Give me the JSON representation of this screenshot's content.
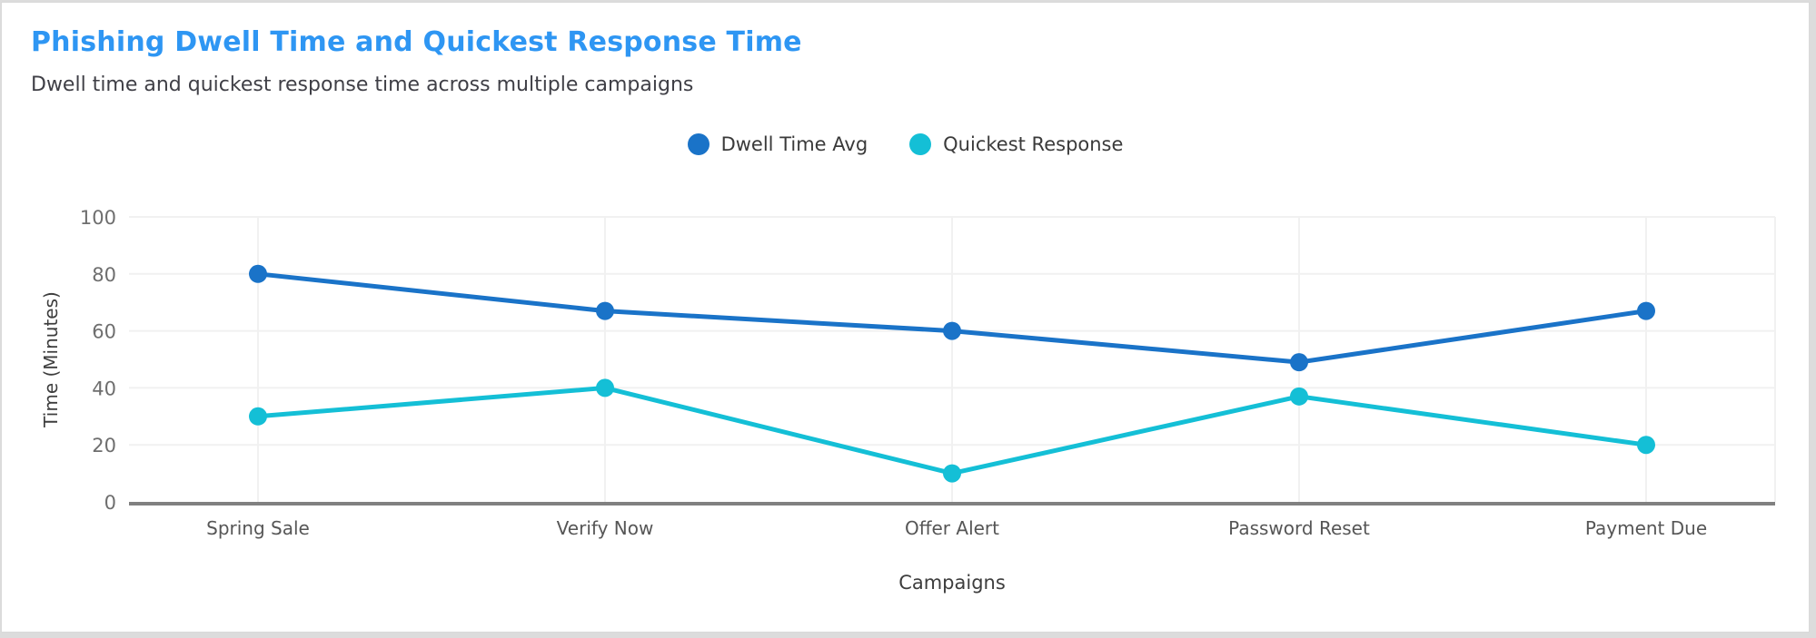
{
  "header": {
    "title": "Phishing Dwell Time and Quickest Response Time",
    "subtitle": "Dwell time and quickest response time across multiple campaigns"
  },
  "colors": {
    "title": "#2E96F3",
    "subtitle": "#3F3F46",
    "legend_text": "#3A3A3A",
    "grid": "#F1F1F1",
    "axis_line": "#808080",
    "tick_label": "#6E6E6E",
    "category_label": "#565656",
    "axis_title": "#3D3D3D",
    "page_bg": "#DCDCDC",
    "card_bg": "#FFFFFF"
  },
  "chart_data": {
    "type": "line",
    "title": "Phishing Dwell Time and Quickest Response Time",
    "subtitle": "Dwell time and quickest response time across multiple campaigns",
    "categories": [
      "Spring Sale",
      "Verify Now",
      "Offer Alert",
      "Password Reset",
      "Payment Due"
    ],
    "series": [
      {
        "name": "Dwell Time Avg",
        "color": "#1A73C8",
        "values": [
          80,
          67,
          60,
          49,
          67
        ]
      },
      {
        "name": "Quickest Response",
        "color": "#14BFD6",
        "values": [
          30,
          40,
          10,
          37,
          20
        ]
      }
    ],
    "xlabel": "Campaigns",
    "ylabel": "Time (Minutes)",
    "ylim": [
      0,
      100
    ],
    "yticks": [
      0,
      20,
      40,
      60,
      80,
      100
    ],
    "grid": true,
    "legend_position": "top-center"
  }
}
